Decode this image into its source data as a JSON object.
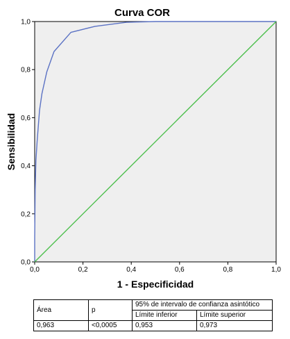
{
  "chart_data": {
    "type": "line",
    "title": "Curva COR",
    "xlabel": "1 - Especificidad",
    "ylabel": "Sensibilidad",
    "xlim": [
      0,
      1
    ],
    "ylim": [
      0,
      1
    ],
    "xticks": [
      "0,0",
      "0,2",
      "0,4",
      "0,6",
      "0,8",
      "1,0"
    ],
    "yticks": [
      "0,0",
      "0,2",
      "0,4",
      "0,6",
      "0,8",
      "1,0"
    ],
    "grid": false,
    "series": [
      {
        "color": "#5b72c4",
        "x": [
          0,
          0,
          0.002,
          0.005,
          0.01,
          0.02,
          0.03,
          0.05,
          0.08,
          0.15,
          0.25,
          0.38,
          0.5,
          1.0
        ],
        "y": [
          0,
          0.1,
          0.3,
          0.42,
          0.5,
          0.63,
          0.7,
          0.79,
          0.875,
          0.955,
          0.98,
          0.997,
          1.0,
          1.0
        ]
      },
      {
        "color": "#4cbf4c",
        "x": [
          0,
          1
        ],
        "y": [
          0,
          1
        ]
      }
    ]
  },
  "table": {
    "area_header": "Área",
    "p_header": "p",
    "ci_header": "95% de intervalo de confianza asintótico",
    "lower_header": "Límite inferior",
    "upper_header": "Límite superior",
    "area_value": "0,963",
    "p_value": "<0,0005",
    "lower_value": "0,953",
    "upper_value": "0,973"
  }
}
